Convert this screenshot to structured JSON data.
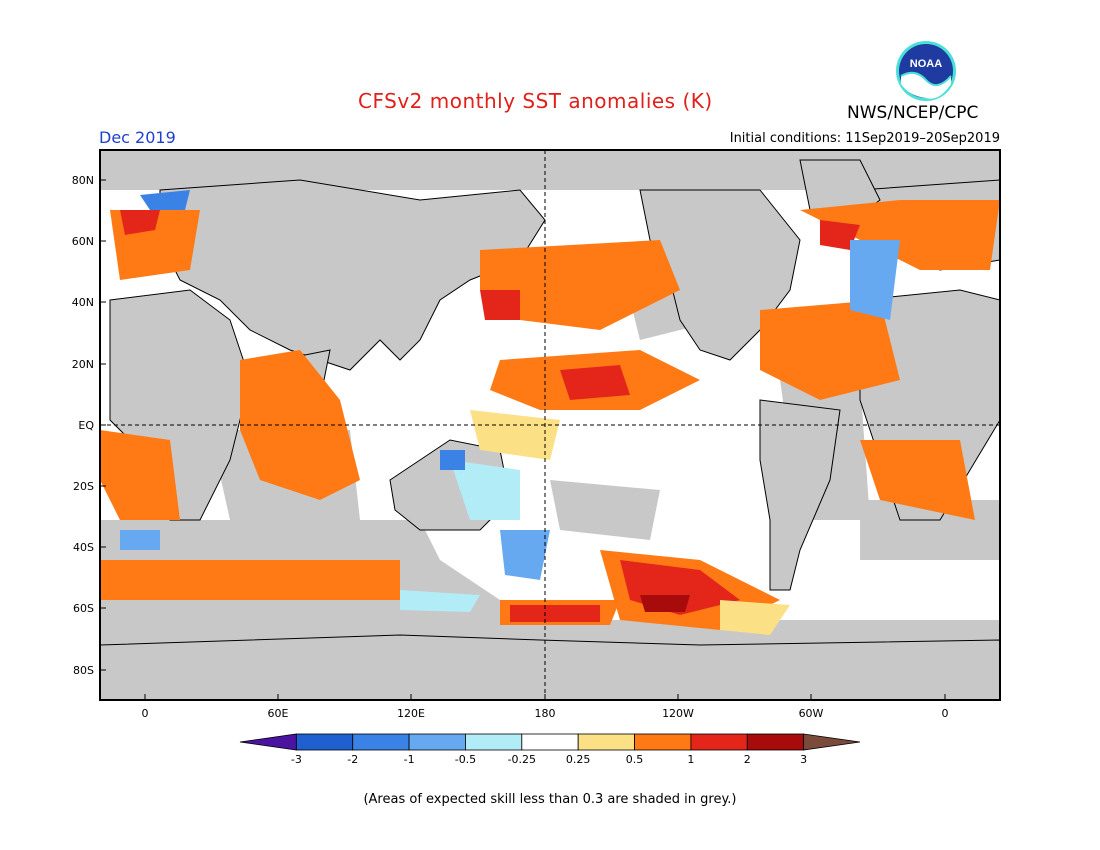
{
  "title": "CFSv2 monthly SST anomalies (K)",
  "period": "Dec 2019",
  "initial_conditions": "Initial conditions: 11Sep2019–20Sep2019",
  "agency": "NWS/NCEP/CPC",
  "logo_text": "NOAA",
  "logo_icon": "noaa-logo-icon",
  "lat_labels": [
    "80N",
    "60N",
    "40N",
    "20N",
    "EQ",
    "20S",
    "40S",
    "60S",
    "80S"
  ],
  "lon_labels": [
    "0",
    "60E",
    "120E",
    "180",
    "120W",
    "60W",
    "0"
  ],
  "colorbar": {
    "labels": [
      "-3",
      "-2",
      "-1",
      "-0.5",
      "-0.25",
      "0.25",
      "0.5",
      "1",
      "2",
      "3"
    ],
    "colors": [
      "#4a14a0",
      "#1f5fd0",
      "#3a82e6",
      "#67a9f0",
      "#b2ecf6",
      "#ffffff",
      "#fbe086",
      "#ff7a14",
      "#e4261a",
      "#a80b0b",
      "#7a4a3a"
    ]
  },
  "land_color": "#c8c8c8",
  "skill_shade_color": "#c8c8c8",
  "footnote": "(Areas of expected skill less than 0.3 are shaded in grey.)"
}
